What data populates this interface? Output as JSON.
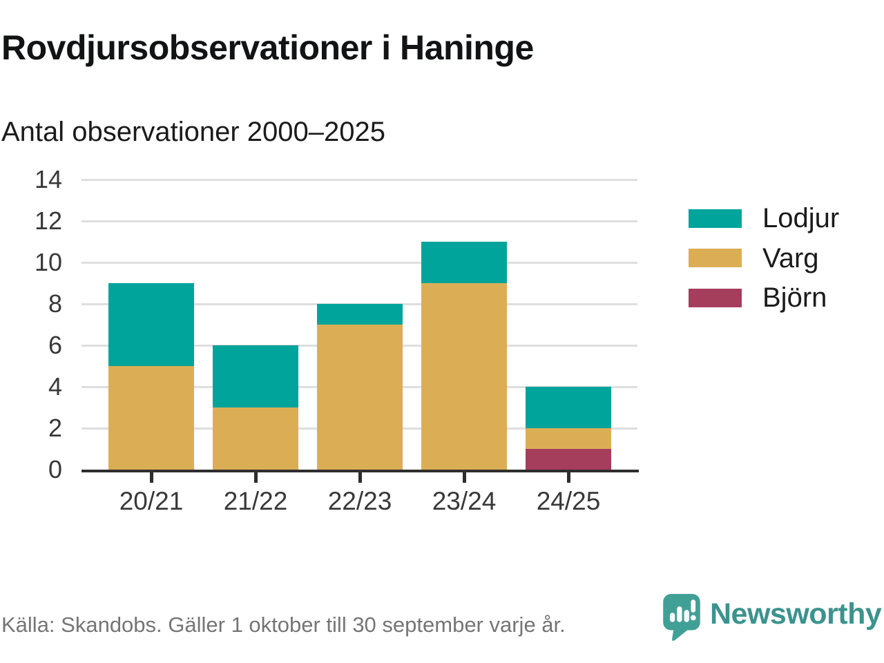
{
  "page": {
    "title": "Rovdjursobservationer i Haninge",
    "subtitle": "Antal observationer 2000–2025",
    "source": "Källa: Skandobs. Gäller 1 oktober till 30 september varje år.",
    "brand": {
      "name": "Newsworthy",
      "color": "#3B938E",
      "icon": "newsworthy-chart-bubble-icon",
      "icon_color": "#41A096"
    }
  },
  "chart_data": {
    "type": "bar",
    "stacked": true,
    "title": "Rovdjursobservationer i Haninge",
    "subtitle": "Antal observationer 2000–2025",
    "categories": [
      "20/21",
      "21/22",
      "22/23",
      "23/24",
      "24/25"
    ],
    "series": [
      {
        "name": "Lodjur",
        "color": "#00A49B",
        "values": [
          4,
          3,
          1,
          2,
          2
        ]
      },
      {
        "name": "Varg",
        "color": "#DBAE55",
        "values": [
          5,
          3,
          7,
          9,
          1
        ]
      },
      {
        "name": "Björn",
        "color": "#A53D5D",
        "values": [
          0,
          0,
          0,
          0,
          1
        ]
      }
    ],
    "totals": [
      9,
      6,
      8,
      11,
      4
    ],
    "stack_order_bottom_to_top": [
      "Björn",
      "Varg",
      "Lodjur"
    ],
    "ylim": [
      0,
      14
    ],
    "yticks": [
      0,
      2,
      4,
      6,
      8,
      10,
      12,
      14
    ],
    "xlabel": "",
    "ylabel": "",
    "grid": true,
    "legend_position": "right",
    "axis_color": "#2E2E2E",
    "grid_color": "#DEDEDE",
    "source": "Källa: Skandobs. Gäller 1 oktober till 30 september varje år."
  }
}
